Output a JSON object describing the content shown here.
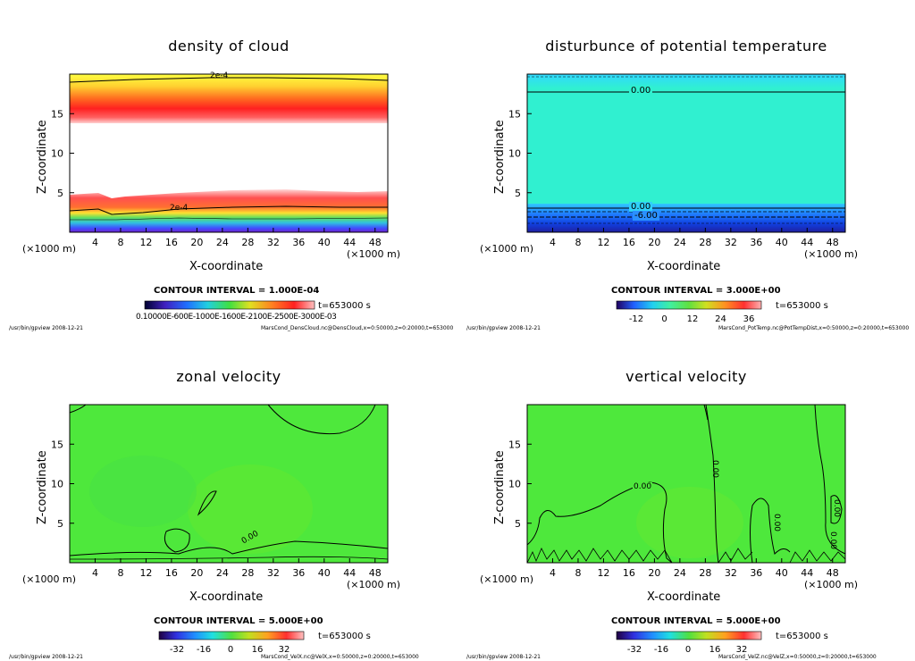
{
  "chart_data": [
    {
      "type": "heatmap",
      "title": "density of cloud",
      "xlabel": "X-coordinate",
      "ylabel": "Z-coordinate",
      "x_unit": "(×1000 m)",
      "xlim": [
        0,
        50
      ],
      "ylim": [
        0,
        20
      ],
      "xticks": [
        "4",
        "8",
        "12",
        "16",
        "20",
        "24",
        "28",
        "32",
        "36",
        "40",
        "44",
        "48"
      ],
      "yticks": [
        "5",
        "10",
        "15"
      ],
      "contour_labels": [
        "2e-4",
        "2e-4"
      ],
      "contour_interval": "CONTOUR INTERVAL = 1.000E-04",
      "time": "t=653000 s",
      "colorbar_ticks": [
        "0.10000E-03",
        "0.60000E-03",
        "0.11000E-02",
        "0.16000E-02",
        "0.21000E-02",
        "0.25000E-02",
        "0.30000E-02"
      ],
      "colorbar_label_text": "0.10000E-600E-1000E-1600E-2100E-2500E-3000E-03",
      "footer_left": "/usr/bin/gpview   2008-12-21",
      "footer_right": "MarsCond_DensCloud.nc@DensCloud,x=0:50000,z=0:20000,t=653000"
    },
    {
      "type": "heatmap",
      "title": "disturbunce of potential temperature",
      "xlabel": "X-coordinate",
      "ylabel": "Z-coordinate",
      "x_unit": "(×1000 m)",
      "xlim": [
        0,
        50
      ],
      "ylim": [
        0,
        20
      ],
      "xticks": [
        "4",
        "8",
        "12",
        "16",
        "20",
        "24",
        "28",
        "32",
        "36",
        "40",
        "44",
        "48"
      ],
      "yticks": [
        "5",
        "10",
        "15"
      ],
      "contour_labels": [
        "0.00",
        "0.00",
        "-6.00"
      ],
      "contour_interval": "CONTOUR INTERVAL = 3.000E+00",
      "time": "t=653000 s",
      "colorbar_ticks": [
        "-12",
        "0",
        "12",
        "24",
        "36"
      ],
      "footer_left": "/usr/bin/gpview   2008-12-21",
      "footer_right": "MarsCond_PotTemp.nc@PotTempDist,x=0:50000,z=0:20000,t=653000"
    },
    {
      "type": "heatmap",
      "title": "zonal velocity",
      "xlabel": "X-coordinate",
      "ylabel": "Z-coordinate",
      "x_unit": "(×1000 m)",
      "xlim": [
        0,
        50
      ],
      "ylim": [
        0,
        20
      ],
      "xticks": [
        "4",
        "8",
        "12",
        "16",
        "20",
        "24",
        "28",
        "32",
        "36",
        "40",
        "44",
        "48"
      ],
      "yticks": [
        "5",
        "10",
        "15"
      ],
      "contour_labels": [
        "0.00"
      ],
      "contour_interval": "CONTOUR INTERVAL = 5.000E+00",
      "time": "t=653000 s",
      "colorbar_ticks": [
        "-32",
        "-16",
        "0",
        "16",
        "32"
      ],
      "footer_left": "/usr/bin/gpview   2008-12-21",
      "footer_right": "MarsCond_VelX.nc@VelX,x=0:50000,z=0:20000,t=653000"
    },
    {
      "type": "heatmap",
      "title": "vertical velocity",
      "xlabel": "X-coordinate",
      "ylabel": "Z-coordinate",
      "x_unit": "(×1000 m)",
      "xlim": [
        0,
        50
      ],
      "ylim": [
        0,
        20
      ],
      "xticks": [
        "4",
        "8",
        "12",
        "16",
        "20",
        "24",
        "28",
        "32",
        "36",
        "40",
        "44",
        "48"
      ],
      "yticks": [
        "5",
        "10",
        "15"
      ],
      "contour_labels": [
        "0.00",
        "0.00",
        "0.00",
        "0.00",
        "0.00"
      ],
      "contour_interval": "CONTOUR INTERVAL = 5.000E+00",
      "time": "t=653000 s",
      "colorbar_ticks": [
        "-32",
        "-16",
        "0",
        "16",
        "32"
      ],
      "footer_left": "/usr/bin/gpview   2008-12-21",
      "footer_right": "MarsCond_VelZ.nc@VelZ,x=0:50000,z=0:20000,t=653000"
    }
  ]
}
